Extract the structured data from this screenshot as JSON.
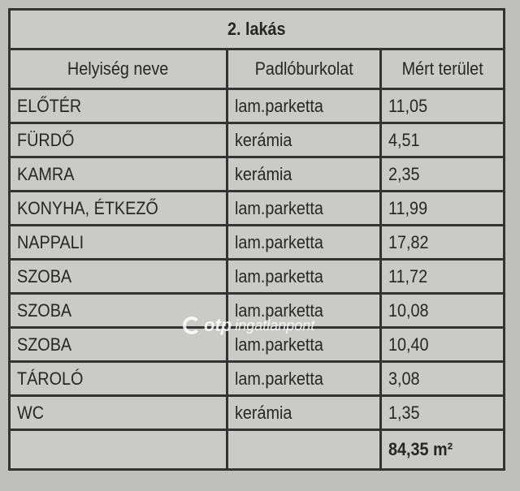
{
  "title": "2. lakás",
  "columns": [
    "Helyiség neve",
    "Padlóburkolat",
    "Mért terület"
  ],
  "rows": [
    [
      "ELŐTÉR",
      "lam.parketta",
      "11,05"
    ],
    [
      "FÜRDŐ",
      "kerámia",
      "4,51"
    ],
    [
      "KAMRA",
      "kerámia",
      "2,35"
    ],
    [
      "KONYHA, ÉTKEZŐ",
      "lam.parketta",
      "11,99"
    ],
    [
      "NAPPALI",
      "lam.parketta",
      "17,82"
    ],
    [
      "SZOBA",
      "lam.parketta",
      "11,72"
    ],
    [
      "SZOBA",
      "lam.parketta",
      "10,08"
    ],
    [
      "SZOBA",
      "lam.parketta",
      "10,40"
    ],
    [
      "TÁROLÓ",
      "lam.parketta",
      "3,08"
    ],
    [
      "WC",
      "kerámia",
      "1,35"
    ]
  ],
  "total": "84,35 m²",
  "watermark": {
    "brand": "otp",
    "suffix": "ingatlanpont"
  }
}
